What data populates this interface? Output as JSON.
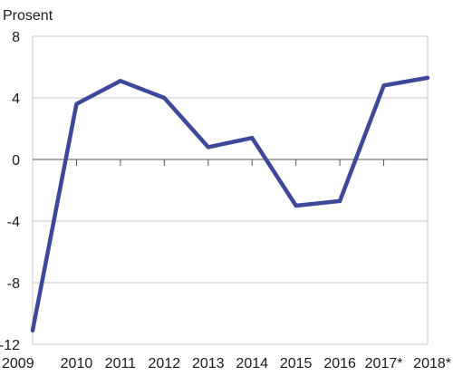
{
  "chart_data": {
    "type": "line",
    "ylabel": "Prosent",
    "categories": [
      "2009",
      "2010",
      "2011",
      "2012",
      "2013",
      "2014",
      "2015",
      "2016",
      "2017*",
      "2018*"
    ],
    "series": [
      {
        "values": [
          -11.1,
          3.6,
          5.1,
          4.0,
          0.8,
          1.4,
          -3.0,
          -2.7,
          4.8,
          5.3
        ]
      }
    ],
    "ylim": [
      -12,
      8
    ],
    "yticks": [
      8,
      4,
      0,
      -4,
      -8,
      -12
    ],
    "grid": true,
    "line_color": "#3d4899"
  }
}
